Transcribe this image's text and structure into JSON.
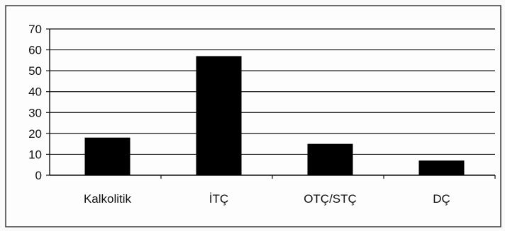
{
  "chart_data": {
    "type": "bar",
    "categories": [
      "Kalkolitik",
      "İTÇ",
      "OTÇ/STÇ",
      "DÇ"
    ],
    "values": [
      18,
      57,
      15,
      7
    ],
    "yticks": [
      0,
      10,
      20,
      30,
      40,
      50,
      60,
      70
    ],
    "ylim": [
      0,
      70
    ],
    "grid": true,
    "bar_color": "#000000",
    "frame_color": "#444444"
  }
}
